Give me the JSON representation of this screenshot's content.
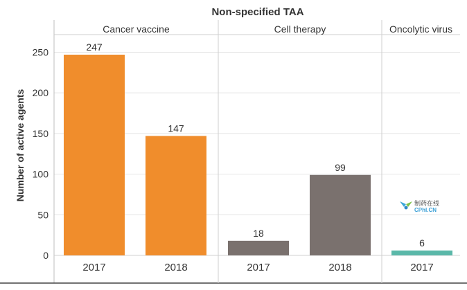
{
  "chart_data": {
    "type": "bar",
    "title": "Non-specified TAA",
    "ylabel": "Number of active agents",
    "xlabel": "",
    "ylim": [
      0,
      270
    ],
    "yticks": [
      0,
      50,
      100,
      150,
      200,
      250
    ],
    "grid": true,
    "panels": [
      {
        "name": "Cancer vaccine",
        "color": "#f08d2c",
        "categories": [
          "2017",
          "2018"
        ],
        "values": [
          247,
          147
        ]
      },
      {
        "name": "Cell therapy",
        "color": "#7a716e",
        "categories": [
          "2017",
          "2018"
        ],
        "values": [
          18,
          99
        ]
      },
      {
        "name": "Oncolytic virus",
        "color": "#5ab8a9",
        "categories": [
          "2017"
        ],
        "values": [
          6
        ]
      }
    ]
  },
  "watermark": {
    "main_text": "制药在线",
    "sub_text": "CPhI.CN",
    "icon": "cphi-logo-icon"
  }
}
